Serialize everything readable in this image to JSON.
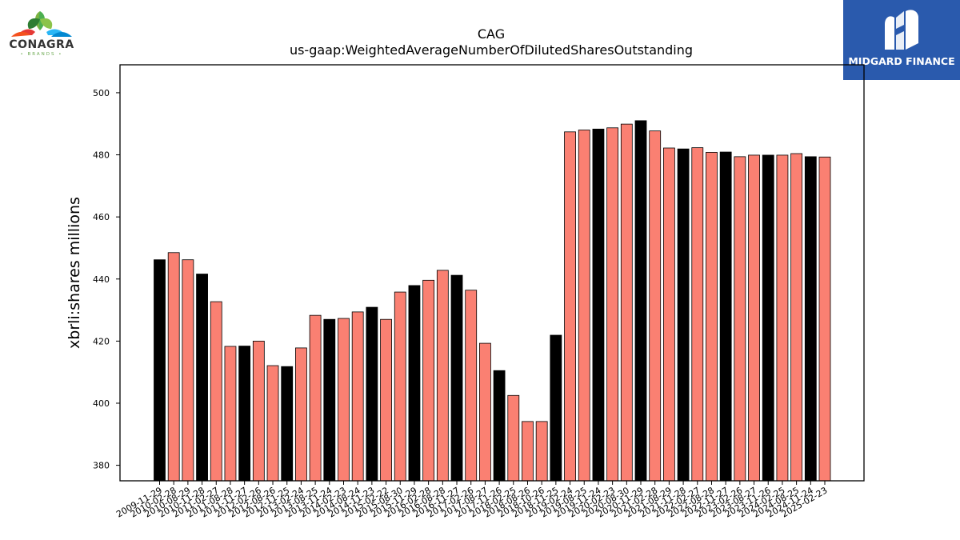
{
  "branding": {
    "left_logo_name": "CONAGRA",
    "left_logo_sub": "• BRANDS •",
    "right_logo_name": "MIDGARD FINANCE"
  },
  "chart_data": {
    "type": "bar",
    "title": "CAG",
    "subtitle": "us-gaap:WeightedAverageNumberOfDilutedSharesOutstanding",
    "xlabel": "",
    "ylabel": "xbrli:shares millions",
    "ylim": [
      375,
      509
    ],
    "yticks": [
      380,
      400,
      420,
      440,
      460,
      480,
      500
    ],
    "colors": {
      "annual": "#000000",
      "quarterly": "#fa8072"
    },
    "categories": [
      "2009-11-29",
      "2010-02-28",
      "2010-08-29",
      "2010-11-28",
      "2011-02-27",
      "2011-08-28",
      "2011-11-27",
      "2012-02-26",
      "2012-08-26",
      "2012-11-25",
      "2013-02-24",
      "2013-08-25",
      "2013-11-24",
      "2014-02-23",
      "2014-08-24",
      "2014-11-23",
      "2015-02-22",
      "2015-08-30",
      "2015-11-29",
      "2016-02-28",
      "2016-08-28",
      "2016-11-27",
      "2017-02-26",
      "2017-08-27",
      "2017-11-26",
      "2018-02-25",
      "2018-08-26",
      "2018-10-26",
      "2018-11-25",
      "2019-02-24",
      "2019-08-25",
      "2019-11-24",
      "2020-02-23",
      "2020-08-30",
      "2020-11-29",
      "2021-02-28",
      "2021-08-29",
      "2021-11-28",
      "2022-02-27",
      "2022-08-28",
      "2022-11-27",
      "2023-02-26",
      "2023-08-27",
      "2023-11-26",
      "2024-02-25",
      "2024-08-25",
      "2024-11-24",
      "2025-02-23"
    ],
    "values": [
      446.2,
      448.5,
      446.2,
      441.6,
      432.7,
      418.3,
      418.4,
      420.0,
      412.1,
      411.8,
      417.8,
      428.3,
      427.0,
      427.3,
      429.4,
      430.9,
      427.0,
      435.8,
      437.9,
      439.6,
      442.8,
      441.2,
      436.4,
      419.3,
      410.5,
      402.5,
      394.1,
      394.1,
      421.9,
      487.4,
      488.0,
      488.3,
      488.7,
      489.9,
      491.0,
      487.7,
      482.2,
      481.9,
      482.3,
      480.8,
      480.9,
      479.4,
      479.9,
      479.9,
      479.9,
      480.4,
      479.4,
      479.3
    ],
    "annual_flags": [
      1,
      0,
      0,
      1,
      0,
      0,
      1,
      0,
      0,
      1,
      0,
      0,
      1,
      0,
      0,
      1,
      0,
      0,
      1,
      0,
      0,
      1,
      0,
      0,
      1,
      0,
      0,
      0,
      1,
      0,
      0,
      1,
      0,
      0,
      1,
      0,
      0,
      1,
      0,
      0,
      1,
      0,
      0,
      1,
      0,
      0,
      1,
      0
    ],
    "grid": false,
    "legend": "none"
  }
}
